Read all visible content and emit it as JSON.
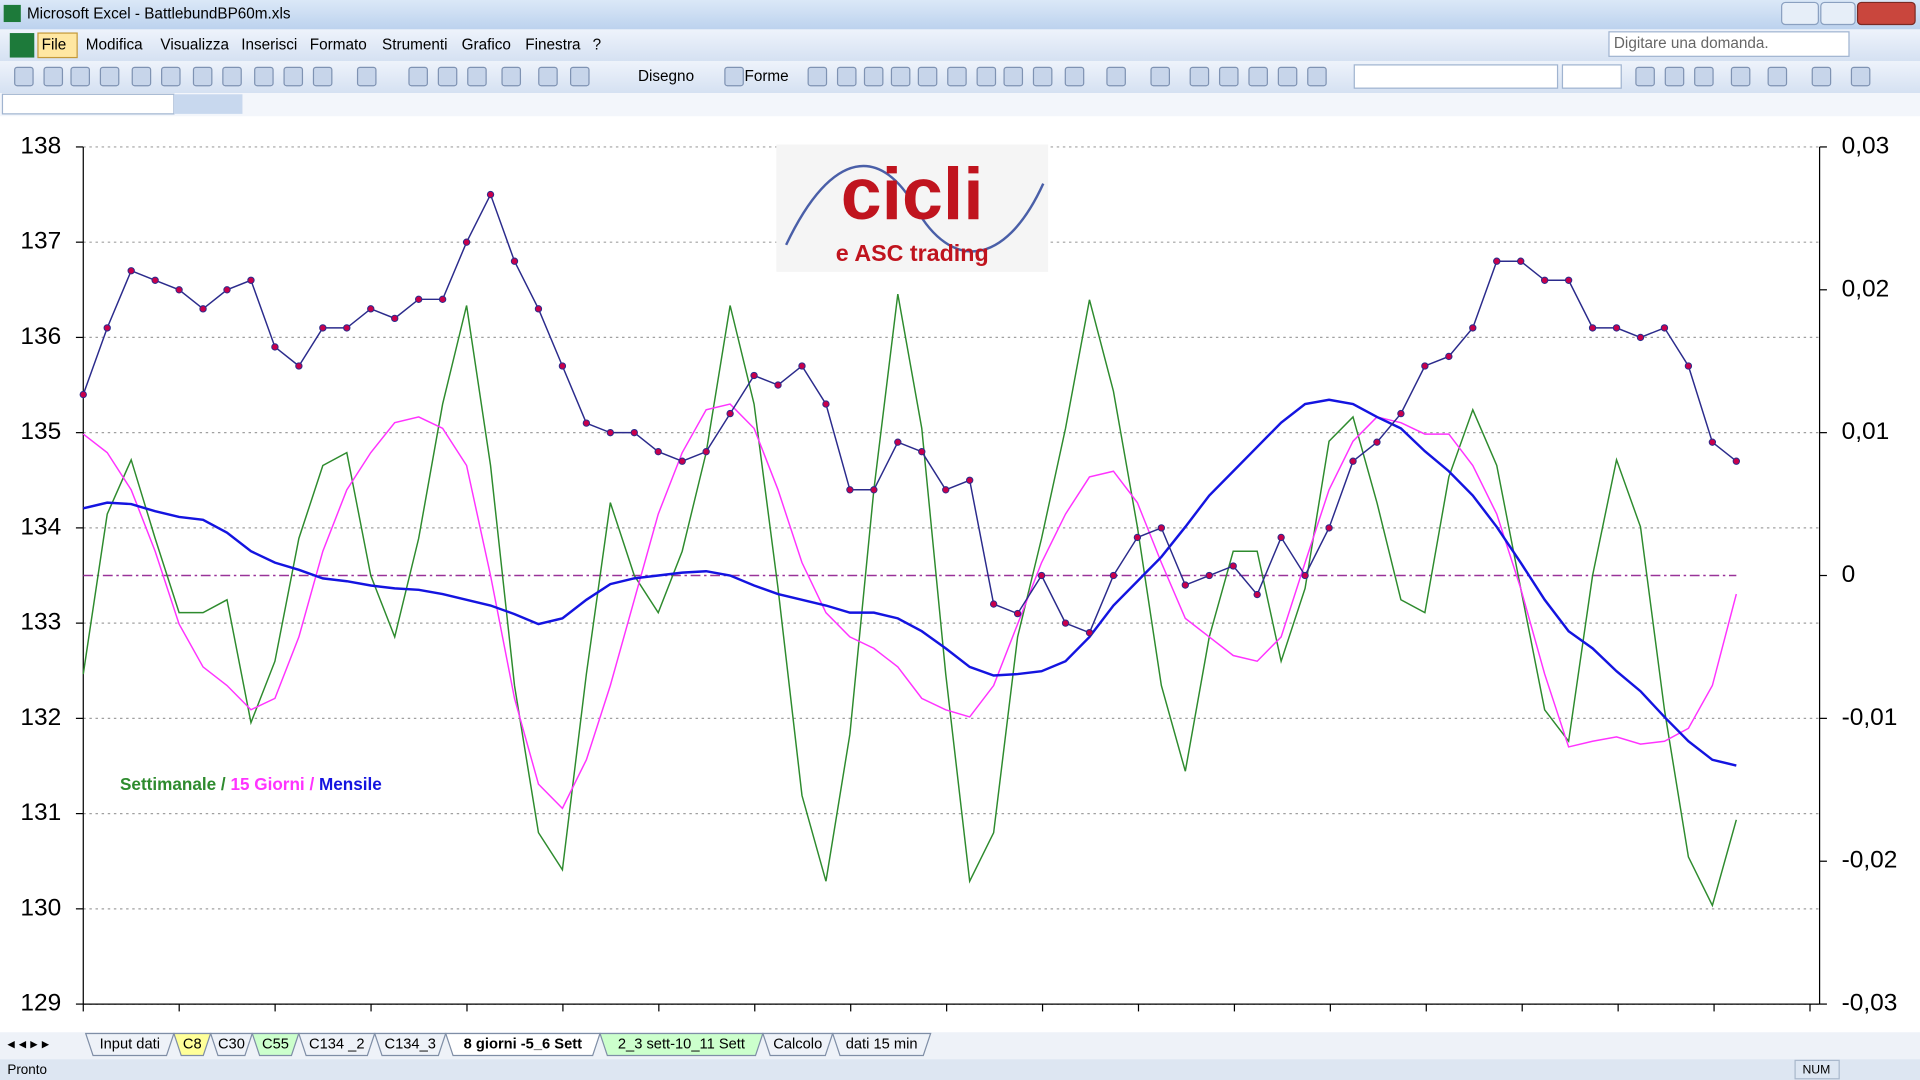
{
  "window": {
    "title": "Microsoft Excel - BattlebundBP60m.xls"
  },
  "menu": [
    "File",
    "Modifica",
    "Visualizza",
    "Inserisci",
    "Formato",
    "Strumenti",
    "Grafico",
    "Finestra",
    "?"
  ],
  "help_box": "Digitare una domanda.",
  "toolbar": {
    "drawing": "Disegno",
    "shapes": "Forme"
  },
  "sheet_tabs": [
    {
      "label": "Input dati"
    },
    {
      "label": "C8",
      "color": "#ffff99"
    },
    {
      "label": "C30"
    },
    {
      "label": "C55",
      "color": "#ccffcc"
    },
    {
      "label": "C134 _2"
    },
    {
      "label": "C134_3"
    },
    {
      "label": "8 giorni -5_6 Sett",
      "active": true
    },
    {
      "label": "2_3 sett-10_11 Sett",
      "color": "#ccffcc"
    },
    {
      "label": "Calcolo"
    },
    {
      "label": "dati 15 min"
    }
  ],
  "status_bar": {
    "left": "Pronto",
    "right": "NUM"
  },
  "chart_data": {
    "type": "line",
    "logo": {
      "title": "cicli",
      "subtitle": "e ASC trading"
    },
    "legend_separator": "/",
    "ylim": [
      129,
      138
    ],
    "yticks": [
      129,
      130,
      131,
      132,
      133,
      134,
      135,
      136,
      137,
      138
    ],
    "y2lim": [
      -0.03,
      0.03
    ],
    "y2ticks": [
      {
        "value": -0.03,
        "label": "-0,03"
      },
      {
        "value": -0.02,
        "label": "-0,02"
      },
      {
        "value": -0.01,
        "label": "-0,01"
      },
      0,
      {
        "value": 0.01,
        "label": "0,01"
      },
      {
        "value": 0.02,
        "label": "0,02"
      },
      {
        "value": 0.03,
        "label": "0,03"
      }
    ],
    "grid": true,
    "reference_line": {
      "value": 0,
      "axis": "y2",
      "color": "#993399"
    },
    "series": [
      {
        "color": "#2b2b8c",
        "marker_color": "#c8004b",
        "values": [
          135.4,
          136.1,
          136.7,
          136.6,
          136.5,
          136.3,
          136.5,
          136.6,
          135.9,
          135.7,
          136.1,
          136.1,
          136.3,
          136.2,
          136.4,
          136.4,
          137.0,
          137.5,
          136.8,
          136.3,
          135.7,
          135.1,
          135.0,
          135.0,
          134.8,
          134.7,
          134.8,
          135.2,
          135.6,
          135.5,
          135.7,
          135.3,
          134.4,
          134.4,
          134.9,
          134.8,
          134.4,
          134.5,
          133.2,
          133.1,
          133.5,
          133.0,
          132.9,
          133.5,
          133.9,
          134.0,
          133.4,
          133.5,
          133.6,
          133.3,
          133.9,
          133.5,
          134.0,
          134.7,
          134.9,
          135.2,
          135.7,
          135.8,
          136.1,
          136.8,
          136.8,
          136.6,
          136.6,
          136.1,
          136.1,
          136.0,
          136.1,
          135.7,
          134.9,
          134.7
        ]
      },
      {
        "name": "Settimanale",
        "color": "#2e8b2e",
        "axis": "y2",
        "values": [
          -0.0069,
          0.0043,
          0.0081,
          0.0026,
          -0.0026,
          -0.0026,
          -0.0017,
          -0.0103,
          -0.006,
          0.0026,
          0.0077,
          0.0086,
          0,
          -0.0043,
          0.0026,
          0.012,
          0.0189,
          0.0077,
          -0.0077,
          -0.018,
          -0.0206,
          -0.0069,
          0.0051,
          0,
          -0.0026,
          0.0017,
          0.0086,
          0.0189,
          0.012,
          -0.0009,
          -0.0154,
          -0.0214,
          -0.0111,
          0.006,
          0.0197,
          0.0103,
          -0.0069,
          -0.0214,
          -0.018,
          -0.0043,
          0.0026,
          0.0103,
          0.0193,
          0.0129,
          0.0034,
          -0.0077,
          -0.0137,
          -0.0043,
          0.0017,
          0.0017,
          -0.006,
          -0.0009,
          0.0094,
          0.0111,
          0.0051,
          -0.0017,
          -0.0026,
          0.0069,
          0.0116,
          0.0077,
          -0.0009,
          -0.0094,
          -0.0116,
          0,
          0.0081,
          0.0034,
          -0.0094,
          -0.0197,
          -0.0231,
          -0.0171
        ]
      },
      {
        "name": "15 Giorni",
        "color": "#ff33ff",
        "axis": "y2",
        "values": [
          0.0099,
          0.0086,
          0.006,
          0.0017,
          -0.0034,
          -0.0064,
          -0.0077,
          -0.0094,
          -0.0086,
          -0.0043,
          0.0017,
          0.006,
          0.0086,
          0.0107,
          0.0111,
          0.0103,
          0.0077,
          0,
          -0.0086,
          -0.0146,
          -0.0163,
          -0.0129,
          -0.0077,
          -0.0017,
          0.0043,
          0.0086,
          0.0116,
          0.012,
          0.0103,
          0.006,
          0.0009,
          -0.0026,
          -0.0043,
          -0.0051,
          -0.0064,
          -0.0086,
          -0.0094,
          -0.0099,
          -0.0077,
          -0.0034,
          0.0009,
          0.0043,
          0.0069,
          0.0073,
          0.0051,
          0.0009,
          -0.003,
          -0.0043,
          -0.0056,
          -0.006,
          -0.0043,
          0.0009,
          0.006,
          0.0094,
          0.0111,
          0.0107,
          0.0099,
          0.0099,
          0.0077,
          0.0043,
          -0.0009,
          -0.0069,
          -0.012,
          -0.0116,
          -0.0113,
          -0.0118,
          -0.0116,
          -0.0107,
          -0.0077,
          -0.0013
        ]
      },
      {
        "name": "Mensile",
        "color": "#1414e0",
        "axis": "y2",
        "values": [
          0.0047,
          0.0051,
          0.005,
          0.0045,
          0.0041,
          0.0039,
          0.003,
          0.0017,
          0.0009,
          0.0004,
          -0.0002,
          -0.0004,
          -0.0007,
          -0.0009,
          -0.001,
          -0.0013,
          -0.0017,
          -0.0021,
          -0.0027,
          -0.0034,
          -0.003,
          -0.0017,
          -0.0006,
          -0.0002,
          0,
          0.0002,
          0.0003,
          0,
          -0.0007,
          -0.0013,
          -0.0017,
          -0.0021,
          -0.0026,
          -0.0026,
          -0.003,
          -0.0039,
          -0.0051,
          -0.0064,
          -0.007,
          -0.0069,
          -0.0067,
          -0.006,
          -0.0043,
          -0.0021,
          -0.0004,
          0.0013,
          0.0034,
          0.0056,
          0.0073,
          0.009,
          0.0107,
          0.012,
          0.0123,
          0.012,
          0.0111,
          0.0103,
          0.0087,
          0.0073,
          0.0056,
          0.0034,
          0.0009,
          -0.0017,
          -0.0039,
          -0.0051,
          -0.0067,
          -0.0081,
          -0.0099,
          -0.0116,
          -0.0129,
          -0.0133
        ]
      }
    ]
  }
}
